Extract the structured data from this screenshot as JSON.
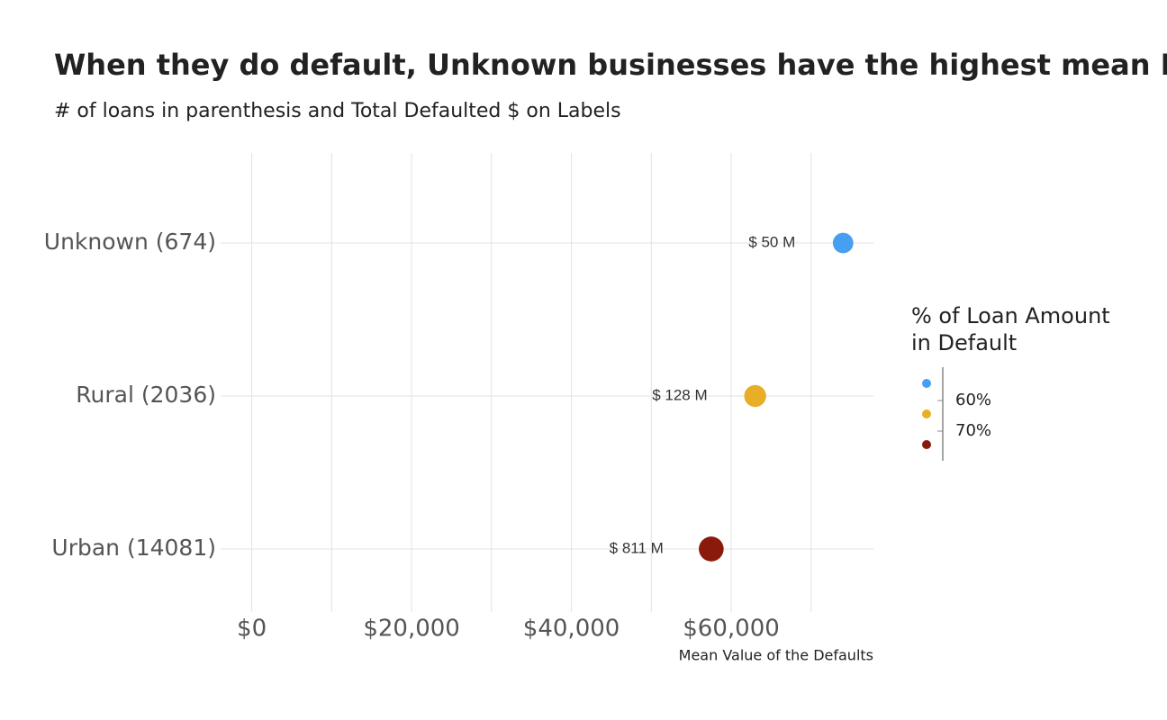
{
  "chart_data": {
    "type": "dot",
    "title": "When they do default, Unknown businesses have the highest mean Default Value",
    "subtitle": "# of loans in parenthesis and Total Defaulted $ on Labels",
    "xlabel": "Mean Value of the Defaults",
    "categories": [
      "Unknown (674)",
      "Rural (2036)",
      "Urban (14081)"
    ],
    "values": [
      74000,
      63000,
      57500
    ],
    "colors": [
      "#469ff0",
      "#e8ae27",
      "#8b1a0c"
    ],
    "totals": [
      50,
      128,
      811
    ],
    "total_labels": [
      "$ 50 M",
      "$ 128 M",
      "$ 811 M"
    ],
    "color_values": [
      54.4,
      64.4,
      74.4
    ],
    "xlim": [
      -3900,
      77800
    ],
    "xticks": [
      {
        "value": 0,
        "label": "$0"
      },
      {
        "value": 20000,
        "label": "$20,000"
      },
      {
        "value": 40000,
        "label": "$40,000"
      },
      {
        "value": 60000,
        "label": "$60,000"
      }
    ],
    "x_minor_ticks": [
      10000,
      30000,
      50000,
      70000
    ],
    "grid": true,
    "legend": {
      "title": [
        "% of Loan Amount",
        "in Default"
      ],
      "lim": [
        49.1,
        79.7
      ],
      "ticks": [
        {
          "value": 60,
          "label": "60%"
        },
        {
          "value": 70,
          "label": "70%"
        }
      ]
    }
  }
}
